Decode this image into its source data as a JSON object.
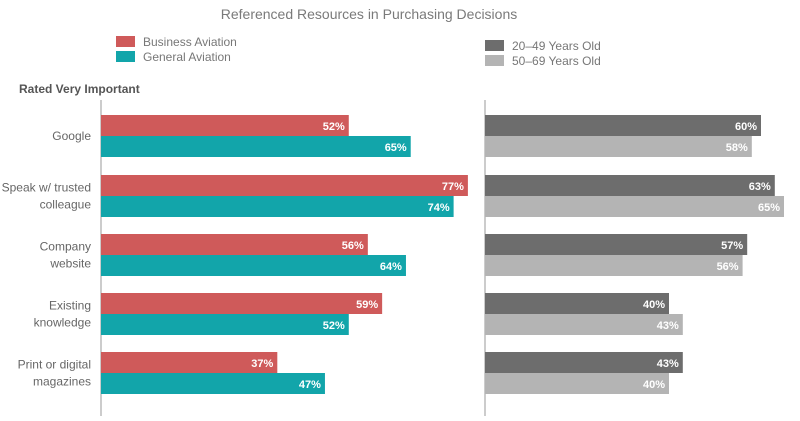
{
  "chart_data": {
    "type": "bar",
    "orientation": "horizontal",
    "title": "Referenced Resources in Purchasing Decisions",
    "subtitle": "Rated Very Important",
    "categories": [
      [
        "Google"
      ],
      [
        "Speak w/ trusted",
        "colleague"
      ],
      [
        "Company",
        "website"
      ],
      [
        "Existing",
        "knowledge"
      ],
      [
        "Print or digital",
        "magazines"
      ]
    ],
    "value_suffix": "%",
    "xlim": [
      0,
      100
    ],
    "panels": [
      {
        "legend_placement": "top-left",
        "series": [
          {
            "name": "Business Aviation",
            "color": "#cf5a5a",
            "values": [
              52,
              77,
              56,
              59,
              37
            ]
          },
          {
            "name": "General Aviation",
            "color": "#12a5aa",
            "values": [
              65,
              74,
              64,
              52,
              47
            ]
          }
        ]
      },
      {
        "legend_placement": "top-right",
        "series": [
          {
            "name": "20–49 Years Old",
            "color": "#6d6d6d",
            "values": [
              60,
              63,
              57,
              40,
              43
            ]
          },
          {
            "name": "50–69 Years Old",
            "color": "#b4b4b4",
            "values": [
              58,
              65,
              56,
              43,
              40
            ]
          }
        ]
      }
    ]
  }
}
